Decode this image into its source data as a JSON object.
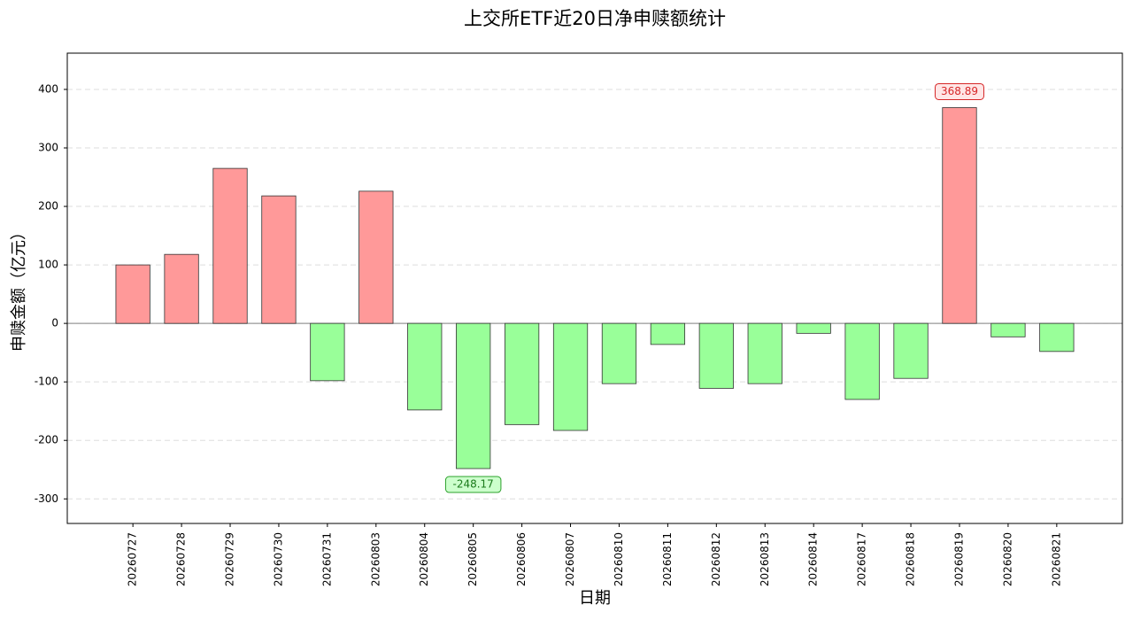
{
  "chart_data": {
    "type": "bar",
    "title": "上交所ETF近20日净申赎额统计",
    "x_label": "日期",
    "y_label": "申赎金额（亿元）",
    "categories": [
      "20260727",
      "20260728",
      "20260729",
      "20260730",
      "20260731",
      "20260803",
      "20260804",
      "20260805",
      "20260806",
      "20260807",
      "20260810",
      "20260811",
      "20260812",
      "20260813",
      "20260814",
      "20260817",
      "20260818",
      "20260819",
      "20260820",
      "20260821"
    ],
    "values": [
      100,
      118,
      265,
      218,
      -98,
      226,
      -148,
      -248.17,
      -173,
      -183,
      -103,
      -36,
      -111,
      -103,
      -17,
      -130,
      -94,
      368.89,
      -23,
      -48
    ],
    "value_labels": [
      null,
      null,
      null,
      null,
      null,
      null,
      null,
      "-248.17",
      null,
      null,
      null,
      null,
      null,
      null,
      null,
      null,
      null,
      "368.89",
      null,
      null
    ],
    "colors": {
      "positive": "#ff9999",
      "negative": "#99ff99"
    },
    "ylim": [
      -342,
      462
    ],
    "yticks": [
      -300,
      -200,
      -100,
      0,
      100,
      200,
      300,
      400
    ],
    "grid": true
  }
}
